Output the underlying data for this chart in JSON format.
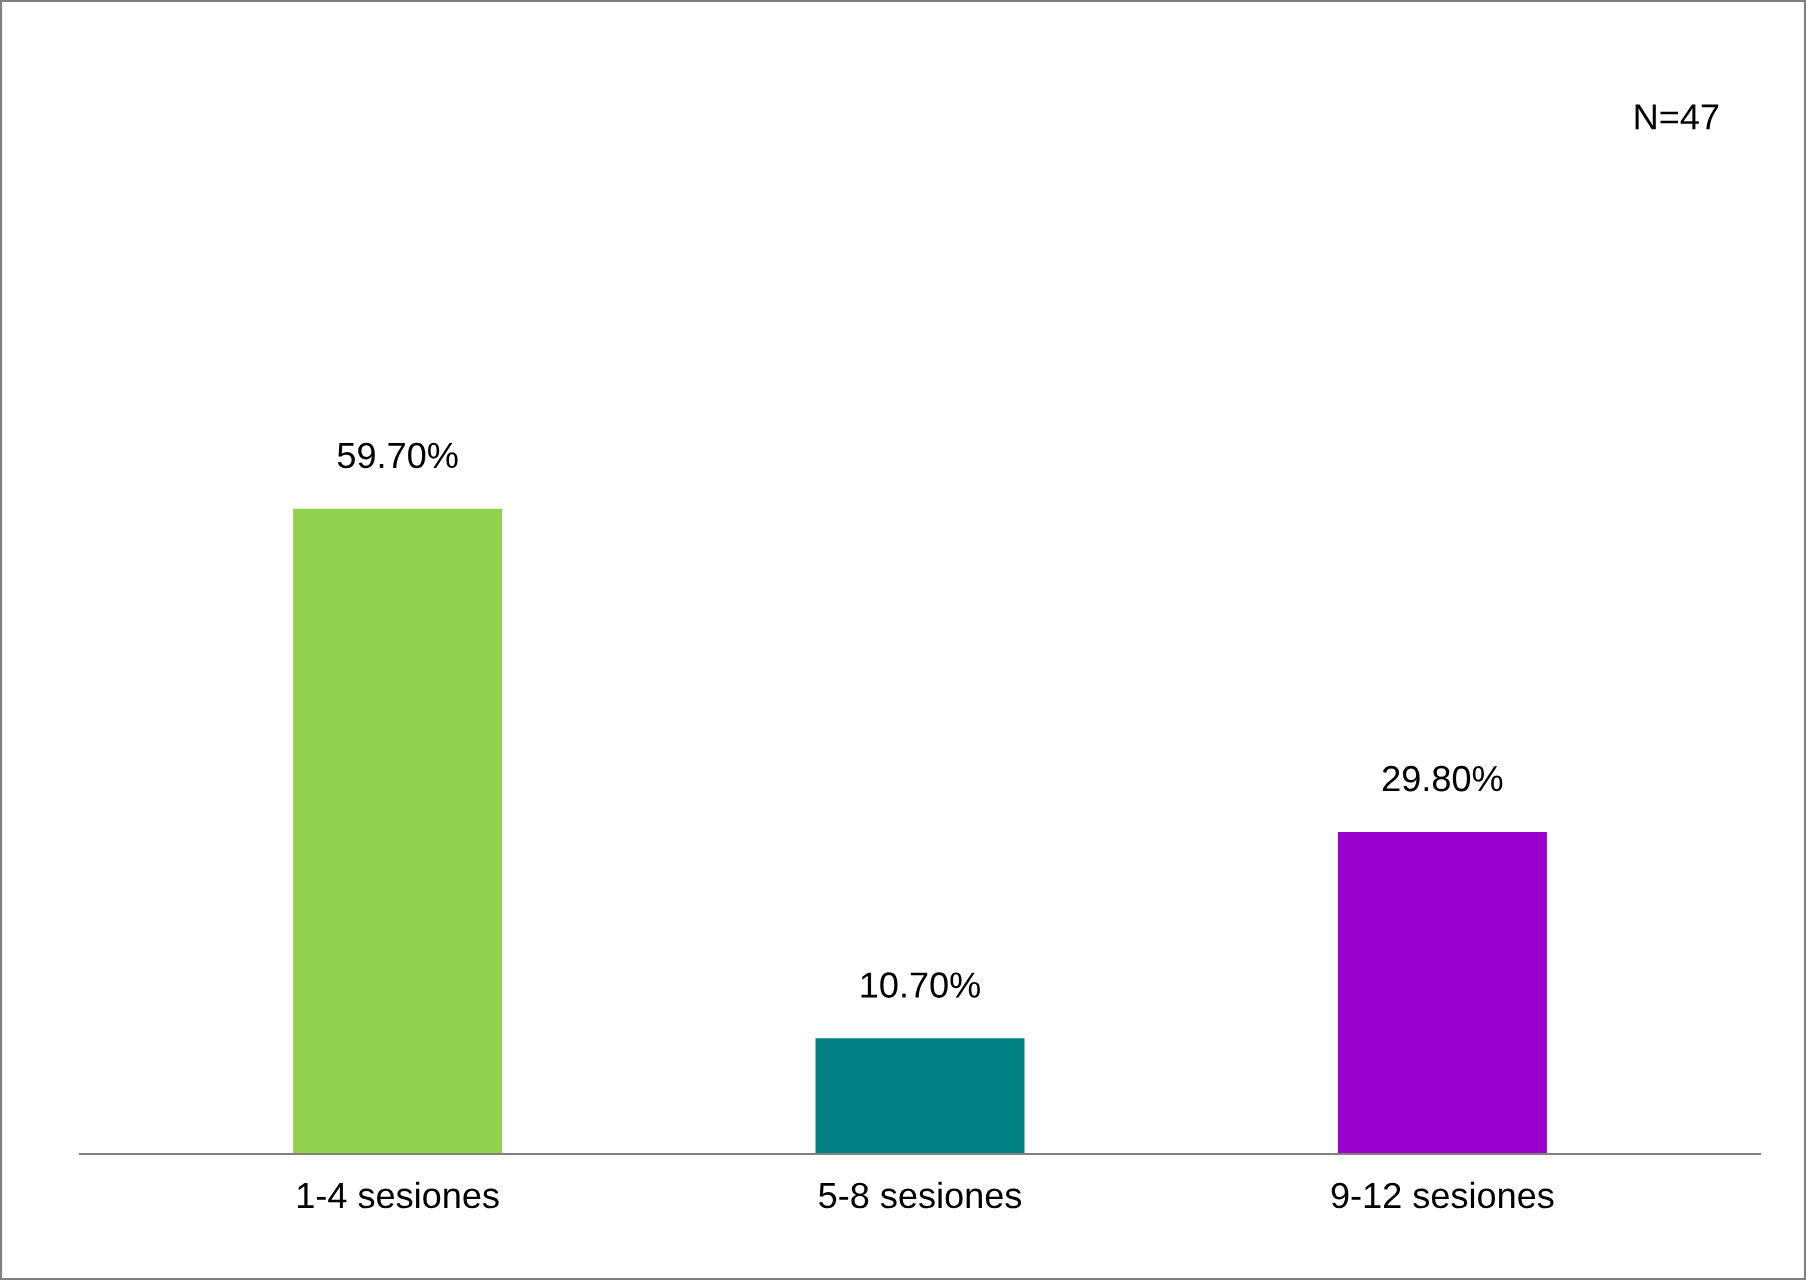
{
  "chart_data": {
    "type": "bar",
    "categories": [
      "1-4 sesiones",
      "5-8 sesiones",
      "9-12 sesiones"
    ],
    "values": [
      59.7,
      10.7,
      29.8
    ],
    "colors": [
      "#92d050",
      "#008080",
      "#9900cc"
    ],
    "value_labels": [
      "59.70%",
      "10.70%",
      "29.80%"
    ],
    "annotations": [
      "N=47"
    ],
    "grid": false,
    "legend": false
  }
}
